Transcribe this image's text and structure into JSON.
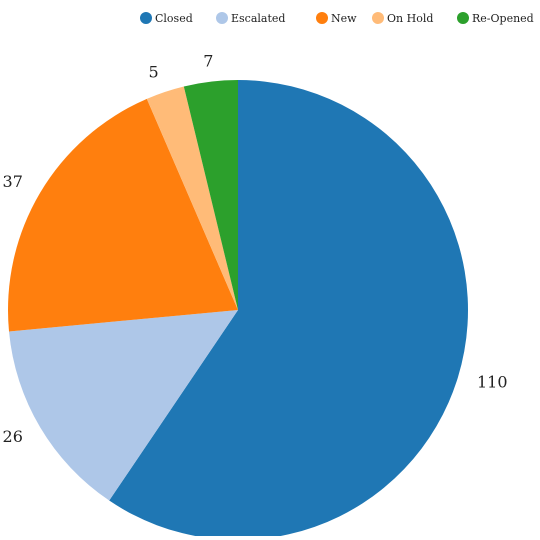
{
  "chart_data": {
    "type": "pie",
    "categories": [
      "Closed",
      "Escalated",
      "New",
      "On Hold",
      "Re-Opened"
    ],
    "values": [
      110,
      26,
      37,
      5,
      7
    ],
    "colors": [
      "#1f77b4",
      "#aec7e8",
      "#ff7f0e",
      "#ffbb78",
      "#2ca02c"
    ],
    "legend_position": "top-right",
    "start_angle": "12 o'clock",
    "direction": "clockwise",
    "data_labels": "outside"
  }
}
